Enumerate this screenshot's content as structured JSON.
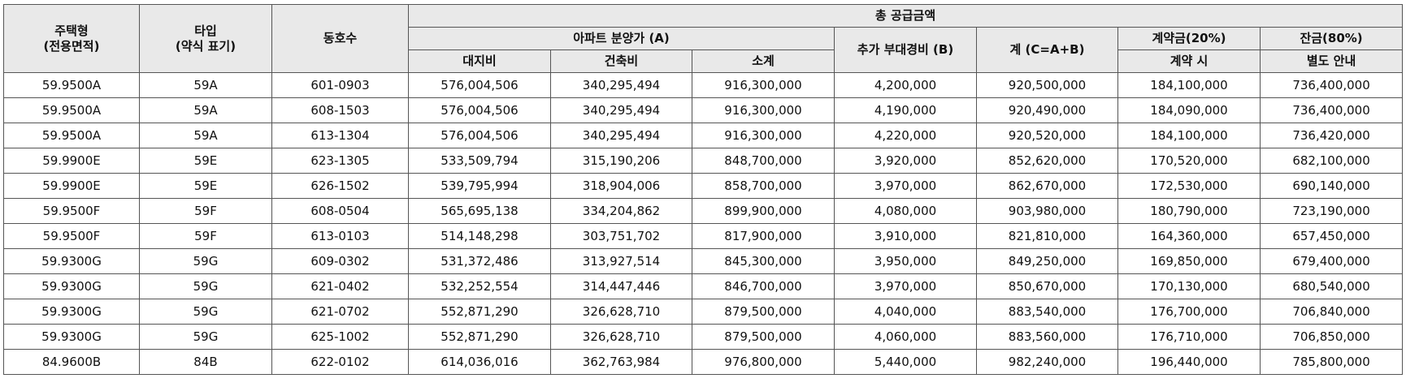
{
  "table": {
    "headers": {
      "housing_type": [
        "주택형",
        "(전용면적)"
      ],
      "type": [
        "타입",
        "(약식 표기)"
      ],
      "unit": "동호수",
      "total_supply": "총 공급금액",
      "apartment_price": "아파트 분양가 (A)",
      "land": "대지비",
      "building": "건축비",
      "subtotal": "소계",
      "extra_cost": "추가 부대경비 (B)",
      "total": "계 (C=A+B)",
      "deposit": "계약금(20%)",
      "deposit_when": "계약 시",
      "balance": "잔금(80%)",
      "balance_when": "별도 안내"
    },
    "rows": [
      [
        "59.9500A",
        "59A",
        "601-0903",
        "576,004,506",
        "340,295,494",
        "916,300,000",
        "4,200,000",
        "920,500,000",
        "184,100,000",
        "736,400,000"
      ],
      [
        "59.9500A",
        "59A",
        "608-1503",
        "576,004,506",
        "340,295,494",
        "916,300,000",
        "4,190,000",
        "920,490,000",
        "184,090,000",
        "736,400,000"
      ],
      [
        "59.9500A",
        "59A",
        "613-1304",
        "576,004,506",
        "340,295,494",
        "916,300,000",
        "4,220,000",
        "920,520,000",
        "184,100,000",
        "736,420,000"
      ],
      [
        "59.9900E",
        "59E",
        "623-1305",
        "533,509,794",
        "315,190,206",
        "848,700,000",
        "3,920,000",
        "852,620,000",
        "170,520,000",
        "682,100,000"
      ],
      [
        "59.9900E",
        "59E",
        "626-1502",
        "539,795,994",
        "318,904,006",
        "858,700,000",
        "3,970,000",
        "862,670,000",
        "172,530,000",
        "690,140,000"
      ],
      [
        "59.9500F",
        "59F",
        "608-0504",
        "565,695,138",
        "334,204,862",
        "899,900,000",
        "4,080,000",
        "903,980,000",
        "180,790,000",
        "723,190,000"
      ],
      [
        "59.9500F",
        "59F",
        "613-0103",
        "514,148,298",
        "303,751,702",
        "817,900,000",
        "3,910,000",
        "821,810,000",
        "164,360,000",
        "657,450,000"
      ],
      [
        "59.9300G",
        "59G",
        "609-0302",
        "531,372,486",
        "313,927,514",
        "845,300,000",
        "3,950,000",
        "849,250,000",
        "169,850,000",
        "679,400,000"
      ],
      [
        "59.9300G",
        "59G",
        "621-0402",
        "532,252,554",
        "314,447,446",
        "846,700,000",
        "3,970,000",
        "850,670,000",
        "170,130,000",
        "680,540,000"
      ],
      [
        "59.9300G",
        "59G",
        "621-0702",
        "552,871,290",
        "326,628,710",
        "879,500,000",
        "4,040,000",
        "883,540,000",
        "176,700,000",
        "706,840,000"
      ],
      [
        "59.9300G",
        "59G",
        "625-1002",
        "552,871,290",
        "326,628,710",
        "879,500,000",
        "4,060,000",
        "883,560,000",
        "176,710,000",
        "706,850,000"
      ],
      [
        "84.9600B",
        "84B",
        "622-0102",
        "614,036,016",
        "362,763,984",
        "976,800,000",
        "5,440,000",
        "982,240,000",
        "196,440,000",
        "785,800,000"
      ]
    ]
  }
}
